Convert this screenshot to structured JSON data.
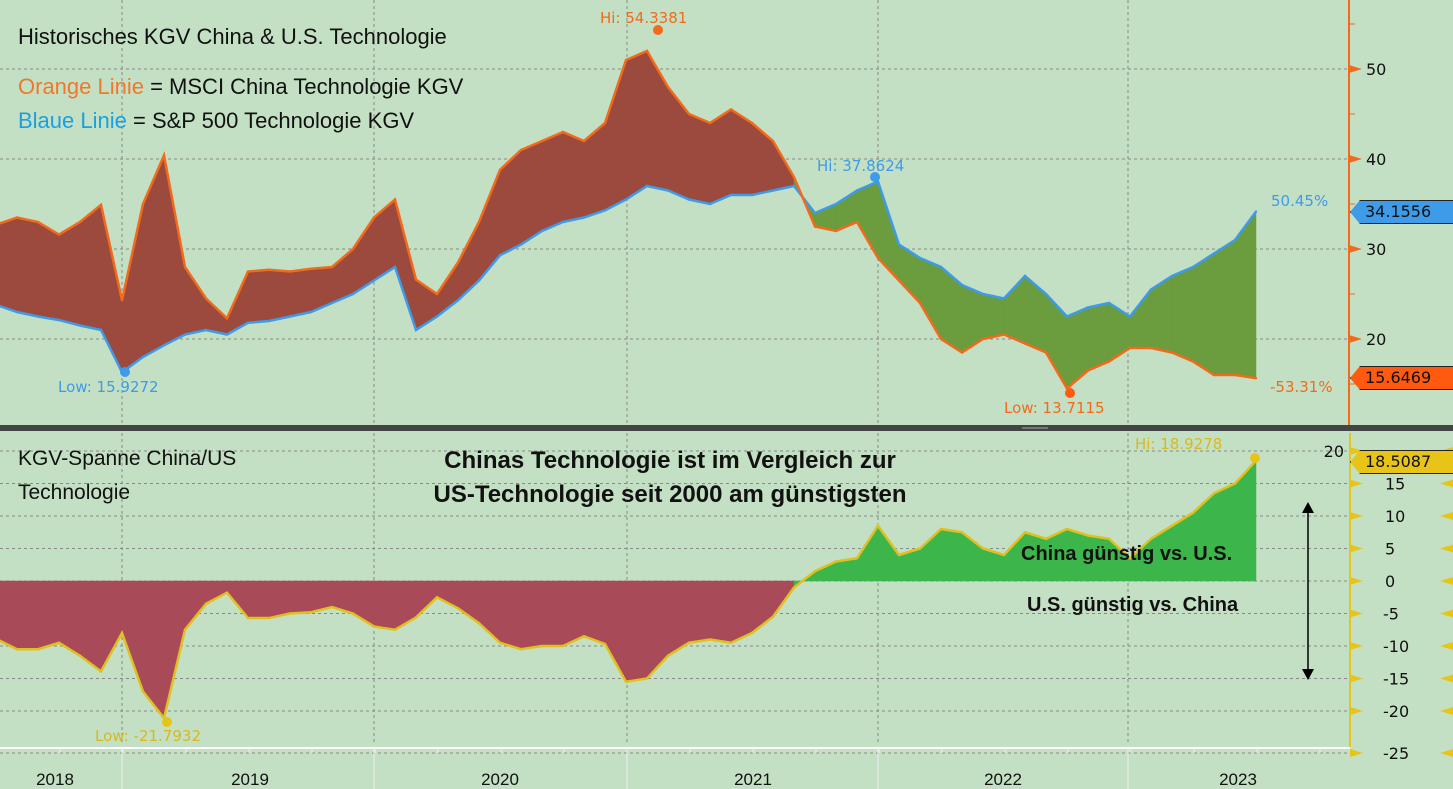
{
  "chart_data": [
    {
      "type": "line",
      "title": "Historisches KGV China & U.S. Technologie",
      "legend": [
        {
          "key": "Orange Linie",
          "text": " = MSCI China Technologie KGV",
          "color": "#f07828"
        },
        {
          "key": "Blaue Linie",
          "text": " = S&P 500 Technologie KGV",
          "color": "#1aa0e0"
        }
      ],
      "legend_placement": "top-left",
      "y_ticks": [
        "50",
        "40",
        "30",
        "20"
      ],
      "ylim": [
        10.8,
        57.7
      ],
      "grid": true,
      "dates": [
        "2018-07",
        "2018-08",
        "2018-09",
        "2018-10",
        "2018-11",
        "2018-12",
        "2019-01",
        "2019-02",
        "2019-03",
        "2019-04",
        "2019-05",
        "2019-06",
        "2019-07",
        "2019-08",
        "2019-09",
        "2019-10",
        "2019-11",
        "2019-12",
        "2020-01",
        "2020-02",
        "2020-03",
        "2020-04",
        "2020-05",
        "2020-06",
        "2020-07",
        "2020-08",
        "2020-09",
        "2020-10",
        "2020-11",
        "2020-12",
        "2021-01",
        "2021-02",
        "2021-03",
        "2021-04",
        "2021-05",
        "2021-06",
        "2021-07",
        "2021-08",
        "2021-09",
        "2021-10",
        "2021-11",
        "2021-12",
        "2022-01",
        "2022-02",
        "2022-03",
        "2022-04",
        "2022-05",
        "2022-06",
        "2022-07",
        "2022-08",
        "2022-09",
        "2022-10",
        "2022-11",
        "2022-12",
        "2023-01",
        "2023-02",
        "2023-03",
        "2023-04",
        "2023-05",
        "2023-06",
        "2023-07"
      ],
      "series": [
        {
          "name": "MSCI China Technologie KGV",
          "color": "#f26a1b",
          "values": [
            32.7,
            33.5,
            33,
            31.6,
            33,
            34.9,
            24.3,
            35,
            40.4,
            28,
            24.5,
            22.3,
            27.5,
            27.7,
            27.5,
            27.8,
            28,
            30,
            33.5,
            35.5,
            26.6,
            25,
            28.5,
            33,
            38.8,
            41,
            42,
            43,
            42,
            44,
            51,
            52,
            48,
            45,
            44,
            45.5,
            44,
            42,
            38,
            32.5,
            32,
            33,
            29,
            26.5,
            24,
            20,
            18.5,
            20,
            20.5,
            19.5,
            18.5,
            14.5,
            16.5,
            17.5,
            19,
            19,
            18.5,
            17.5,
            16,
            16,
            15.65
          ]
        },
        {
          "name": "S&P 500 Technologie KGV",
          "color": "#3d9be9",
          "values": [
            23.8,
            23,
            22.5,
            22.1,
            21.5,
            21,
            16.3,
            18,
            19.3,
            20.5,
            21,
            20.5,
            21.8,
            22,
            22.5,
            23,
            24,
            25,
            26.5,
            28,
            21,
            22.5,
            24.3,
            26.5,
            29.3,
            30.5,
            32,
            33,
            33.5,
            34.3,
            35.5,
            37,
            36.5,
            35.5,
            35,
            36,
            36,
            36.5,
            37,
            34,
            35,
            36.5,
            37.5,
            30.5,
            29,
            28,
            26,
            25,
            24.5,
            27,
            25,
            22.5,
            23.5,
            24,
            22.5,
            25.5,
            27,
            28,
            29.5,
            31,
            34.16
          ]
        }
      ],
      "annotations": {
        "china_hi": "Hi: 54.3381",
        "us_hi": "Hi: 37.8624",
        "us_low": "Low: 15.9272",
        "china_low": "Low: 13.7115",
        "us_change": "50.45%",
        "china_change": "-53.31%",
        "us_last": "34.1556",
        "china_last": "15.6469"
      },
      "fill_colors": {
        "china_above": "#9c4a3e",
        "us_above": "#6b9c3e"
      }
    },
    {
      "type": "area",
      "title": "KGV-Spanne China/US Technologie",
      "headline": [
        "Chinas Technologie ist im Vergleich zur",
        "US-Technologie seit 2000 am günstigsten"
      ],
      "y_ticks": [
        "20",
        "15",
        "10",
        "5",
        "0",
        "-5",
        "-10",
        "-15",
        "-20",
        "-25"
      ],
      "ylim": [
        -25.4,
        23.2
      ],
      "grid": true,
      "values": [
        -8.9,
        -10.5,
        -10.5,
        -9.5,
        -11.5,
        -13.9,
        -8,
        -17,
        -21.1,
        -7.5,
        -3.5,
        -1.8,
        -5.7,
        -5.7,
        -5,
        -4.8,
        -4,
        -5,
        -7,
        -7.5,
        -5.6,
        -2.5,
        -4.2,
        -6.5,
        -9.5,
        -10.5,
        -10,
        -10,
        -8.5,
        -9.7,
        -15.5,
        -15,
        -11.5,
        -9.5,
        -9,
        -9.5,
        -8,
        -5.5,
        -1,
        1.5,
        3,
        3.5,
        8.5,
        4,
        5,
        8,
        7.5,
        5,
        4,
        7.5,
        6.5,
        8,
        7,
        6.5,
        3.5,
        6.5,
        8.5,
        10.5,
        13.5,
        15,
        18.51
      ],
      "line_color": "#e0c020",
      "fill_colors": {
        "negative": "#a84a58",
        "positive": "#3cb54a"
      },
      "annotations": {
        "hi": "Hi: 18.9278",
        "low": "Low: -21.7932",
        "last": "18.5087",
        "positive_label": "China günstig vs. U.S.",
        "negative_label": "U.S. günstig vs. China"
      }
    }
  ],
  "x_axis": {
    "ticks": [
      "2018",
      "2019",
      "2020",
      "2021",
      "2022",
      "2023"
    ]
  },
  "background": "#c4e0c4"
}
